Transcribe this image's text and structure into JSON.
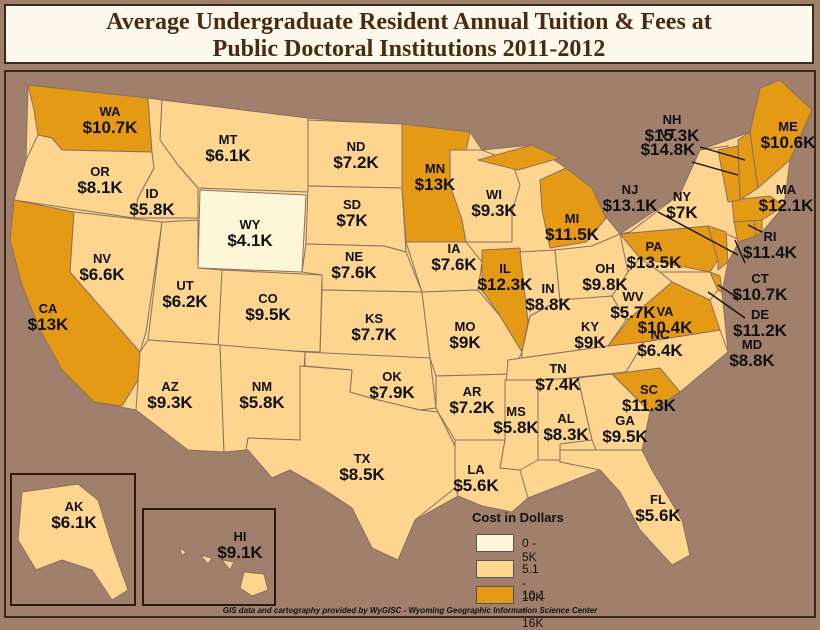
{
  "title": {
    "line1": "Average Undergraduate Resident Annual Tuition & Fees at",
    "line2": "Public Doctoral Institutions 2011-2012"
  },
  "colors": {
    "background": "#a07f6c",
    "low": "#fdf6d8",
    "mid": "#fdd58f",
    "high": "#e49a14",
    "border": "#8a7060"
  },
  "legend": {
    "title": "Cost in Dollars",
    "items": [
      {
        "label": "0 - 5K",
        "color": "#fdf6d8"
      },
      {
        "label": "5.1 - 10K",
        "color": "#fdd58f"
      },
      {
        "label": "10.1 - 16K",
        "color": "#e49a14"
      }
    ]
  },
  "credit": "GIS data and cartography provided by WyGISC - Wyoming Geographic Information Science Center",
  "states": [
    {
      "abbr": "WA",
      "value": "$10.7K",
      "cls": "high"
    },
    {
      "abbr": "OR",
      "value": "$8.1K",
      "cls": "mid"
    },
    {
      "abbr": "CA",
      "value": "$13K",
      "cls": "high"
    },
    {
      "abbr": "ID",
      "value": "$5.8K",
      "cls": "mid"
    },
    {
      "abbr": "NV",
      "value": "$6.6K",
      "cls": "mid"
    },
    {
      "abbr": "MT",
      "value": "$6.1K",
      "cls": "mid"
    },
    {
      "abbr": "WY",
      "value": "$4.1K",
      "cls": "low"
    },
    {
      "abbr": "UT",
      "value": "$6.2K",
      "cls": "mid"
    },
    {
      "abbr": "CO",
      "value": "$9.5K",
      "cls": "mid"
    },
    {
      "abbr": "AZ",
      "value": "$9.3K",
      "cls": "mid"
    },
    {
      "abbr": "NM",
      "value": "$5.8K",
      "cls": "mid"
    },
    {
      "abbr": "ND",
      "value": "$7.2K",
      "cls": "mid"
    },
    {
      "abbr": "SD",
      "value": "$7K",
      "cls": "mid"
    },
    {
      "abbr": "NE",
      "value": "$7.6K",
      "cls": "mid"
    },
    {
      "abbr": "KS",
      "value": "$7.7K",
      "cls": "mid"
    },
    {
      "abbr": "OK",
      "value": "$7.9K",
      "cls": "mid"
    },
    {
      "abbr": "TX",
      "value": "$8.5K",
      "cls": "mid"
    },
    {
      "abbr": "MN",
      "value": "$13K",
      "cls": "high"
    },
    {
      "abbr": "IA",
      "value": "$7.6K",
      "cls": "mid"
    },
    {
      "abbr": "MO",
      "value": "$9K",
      "cls": "mid"
    },
    {
      "abbr": "AR",
      "value": "$7.2K",
      "cls": "mid"
    },
    {
      "abbr": "LA",
      "value": "$5.6K",
      "cls": "mid"
    },
    {
      "abbr": "WI",
      "value": "$9.3K",
      "cls": "mid"
    },
    {
      "abbr": "IL",
      "value": "$12.3K",
      "cls": "high"
    },
    {
      "abbr": "MI",
      "value": "$11.5K",
      "cls": "high"
    },
    {
      "abbr": "IN",
      "value": "$8.8K",
      "cls": "mid"
    },
    {
      "abbr": "OH",
      "value": "$9.8K",
      "cls": "mid"
    },
    {
      "abbr": "KY",
      "value": "$9K",
      "cls": "mid"
    },
    {
      "abbr": "TN",
      "value": "$7.4K",
      "cls": "mid"
    },
    {
      "abbr": "MS",
      "value": "$5.8K",
      "cls": "mid"
    },
    {
      "abbr": "AL",
      "value": "$8.3K",
      "cls": "mid"
    },
    {
      "abbr": "GA",
      "value": "$9.5K",
      "cls": "mid"
    },
    {
      "abbr": "FL",
      "value": "$5.6K",
      "cls": "mid"
    },
    {
      "abbr": "SC",
      "value": "$11.3K",
      "cls": "high"
    },
    {
      "abbr": "NC",
      "value": "$6.4K",
      "cls": "mid"
    },
    {
      "abbr": "VA",
      "value": "$10.4K",
      "cls": "high"
    },
    {
      "abbr": "WV",
      "value": "$5.7K",
      "cls": "mid"
    },
    {
      "abbr": "PA",
      "value": "$13.5K",
      "cls": "high"
    },
    {
      "abbr": "NY",
      "value": "$7K",
      "cls": "mid"
    },
    {
      "abbr": "MD",
      "value": "$8.8K",
      "cls": "mid"
    },
    {
      "abbr": "DE",
      "value": "$11.2K",
      "cls": "high"
    },
    {
      "abbr": "NJ",
      "value": "$13.1K",
      "cls": "high"
    },
    {
      "abbr": "CT",
      "value": "$10.7K",
      "cls": "high"
    },
    {
      "abbr": "RI",
      "value": "$11.4K",
      "cls": "high"
    },
    {
      "abbr": "MA",
      "value": "$12.1K",
      "cls": "high"
    },
    {
      "abbr": "VT",
      "value": "$14.8K",
      "cls": "high"
    },
    {
      "abbr": "NH",
      "value": "$15.3K",
      "cls": "high"
    },
    {
      "abbr": "ME",
      "value": "$10.6K",
      "cls": "high"
    },
    {
      "abbr": "AK",
      "value": "$6.1K",
      "cls": "mid"
    },
    {
      "abbr": "HI",
      "value": "$9.1K",
      "cls": "mid"
    }
  ]
}
